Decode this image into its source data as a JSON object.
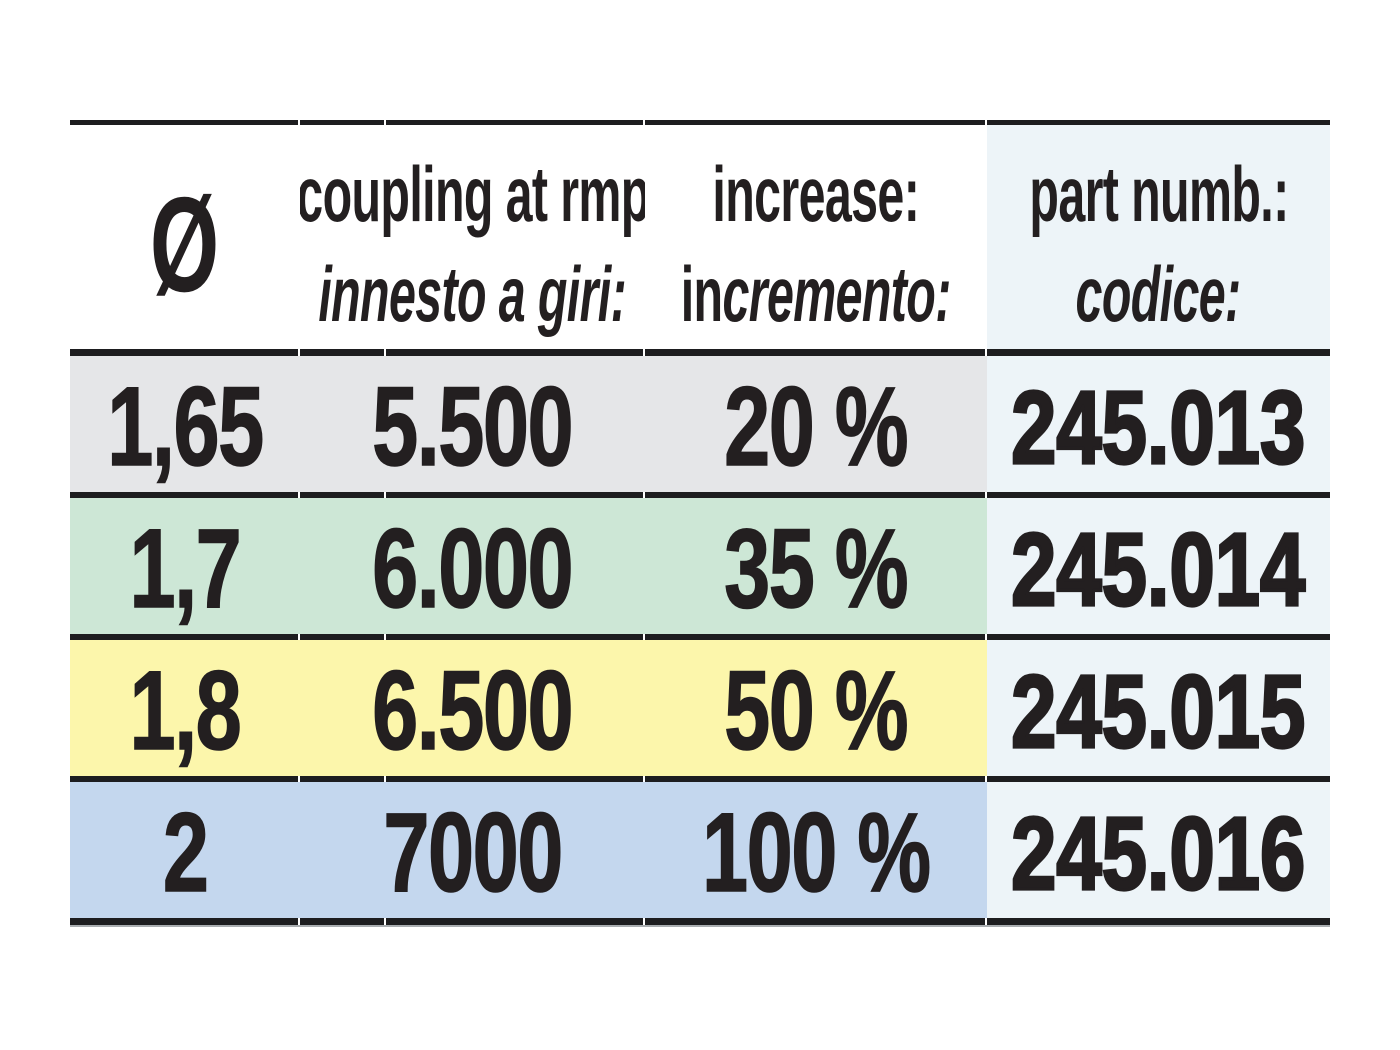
{
  "table": {
    "header": {
      "diameter_symbol": "Ø",
      "coupling_line1": "coupling at rmp",
      "coupling_line2": "innesto a giri:",
      "increase_line1": "increase:",
      "increase_line2_upright": "in",
      "increase_line2_italic": "cremento:",
      "part_line1": "part numb.:",
      "part_line2": "codice:"
    },
    "rows": [
      {
        "diameter": "1,65",
        "coupling_rpm": "5.500",
        "increase": "20 %",
        "part_number": "245.013",
        "color": "#e5e6e8"
      },
      {
        "diameter": "1,7",
        "coupling_rpm": "6.000",
        "increase": "35 %",
        "part_number": "245.014",
        "color": "#cde7d6"
      },
      {
        "diameter": "1,8",
        "coupling_rpm": "6.500",
        "increase": "50 %",
        "part_number": "245.015",
        "color": "#fcf6ab"
      },
      {
        "diameter": "2",
        "coupling_rpm": "7000",
        "increase": "100 %",
        "part_number": "245.016",
        "color": "#c4d7ee"
      }
    ],
    "colors": {
      "part_column_bg": "#edf4f8",
      "rule": "#1d1d1f",
      "text": "#231f20"
    }
  }
}
